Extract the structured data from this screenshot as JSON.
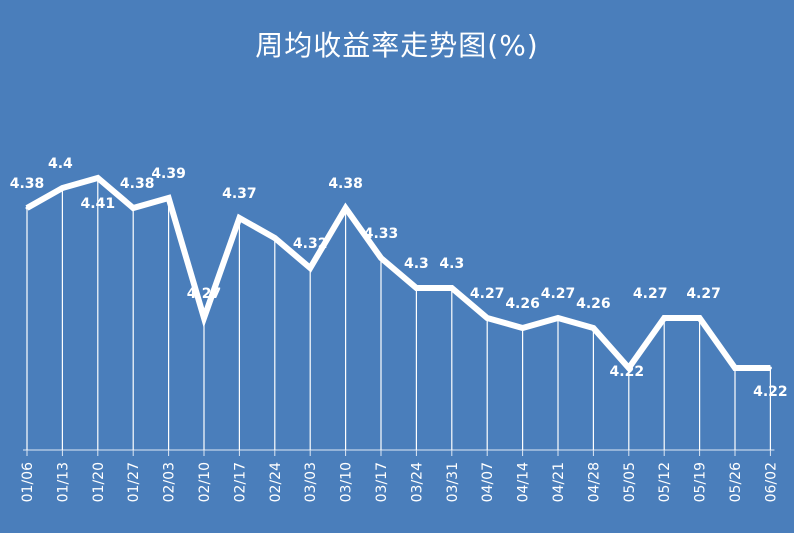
{
  "chart_data": {
    "type": "line",
    "title": "周均收益率走势图(%)",
    "categories": [
      "01/06",
      "01/13",
      "01/20",
      "01/27",
      "02/03",
      "02/10",
      "02/17",
      "02/24",
      "03/03",
      "03/10",
      "03/17",
      "03/24",
      "03/31",
      "04/07",
      "04/14",
      "04/21",
      "04/28",
      "05/05",
      "05/12",
      "05/19",
      "05/26",
      "06/02"
    ],
    "series": [
      {
        "values": [
          4.38,
          4.4,
          4.41,
          4.38,
          4.39,
          4.27,
          4.37,
          4.35,
          4.32,
          4.38,
          4.33,
          4.3,
          4.3,
          4.27,
          4.26,
          4.27,
          4.26,
          4.22,
          4.27,
          4.27,
          4.22,
          4.22
        ],
        "data_labels": [
          "4.38",
          "4.4",
          "4.41",
          "4.38",
          "4.39",
          "4.27",
          "4.37",
          "",
          "4.32",
          "4.38",
          "4.33",
          "4.3",
          "4.3",
          "4.27",
          "4.26",
          "4.27",
          "4.26",
          "4.22",
          "4.27",
          "4.27",
          "",
          "4.22"
        ]
      }
    ],
    "ylim": [
      4.06,
      4.46
    ],
    "grid": false,
    "legend": "none",
    "colors": {
      "background": "#4a7ebb",
      "line": "#ffffff",
      "text": "#ffffff"
    }
  }
}
